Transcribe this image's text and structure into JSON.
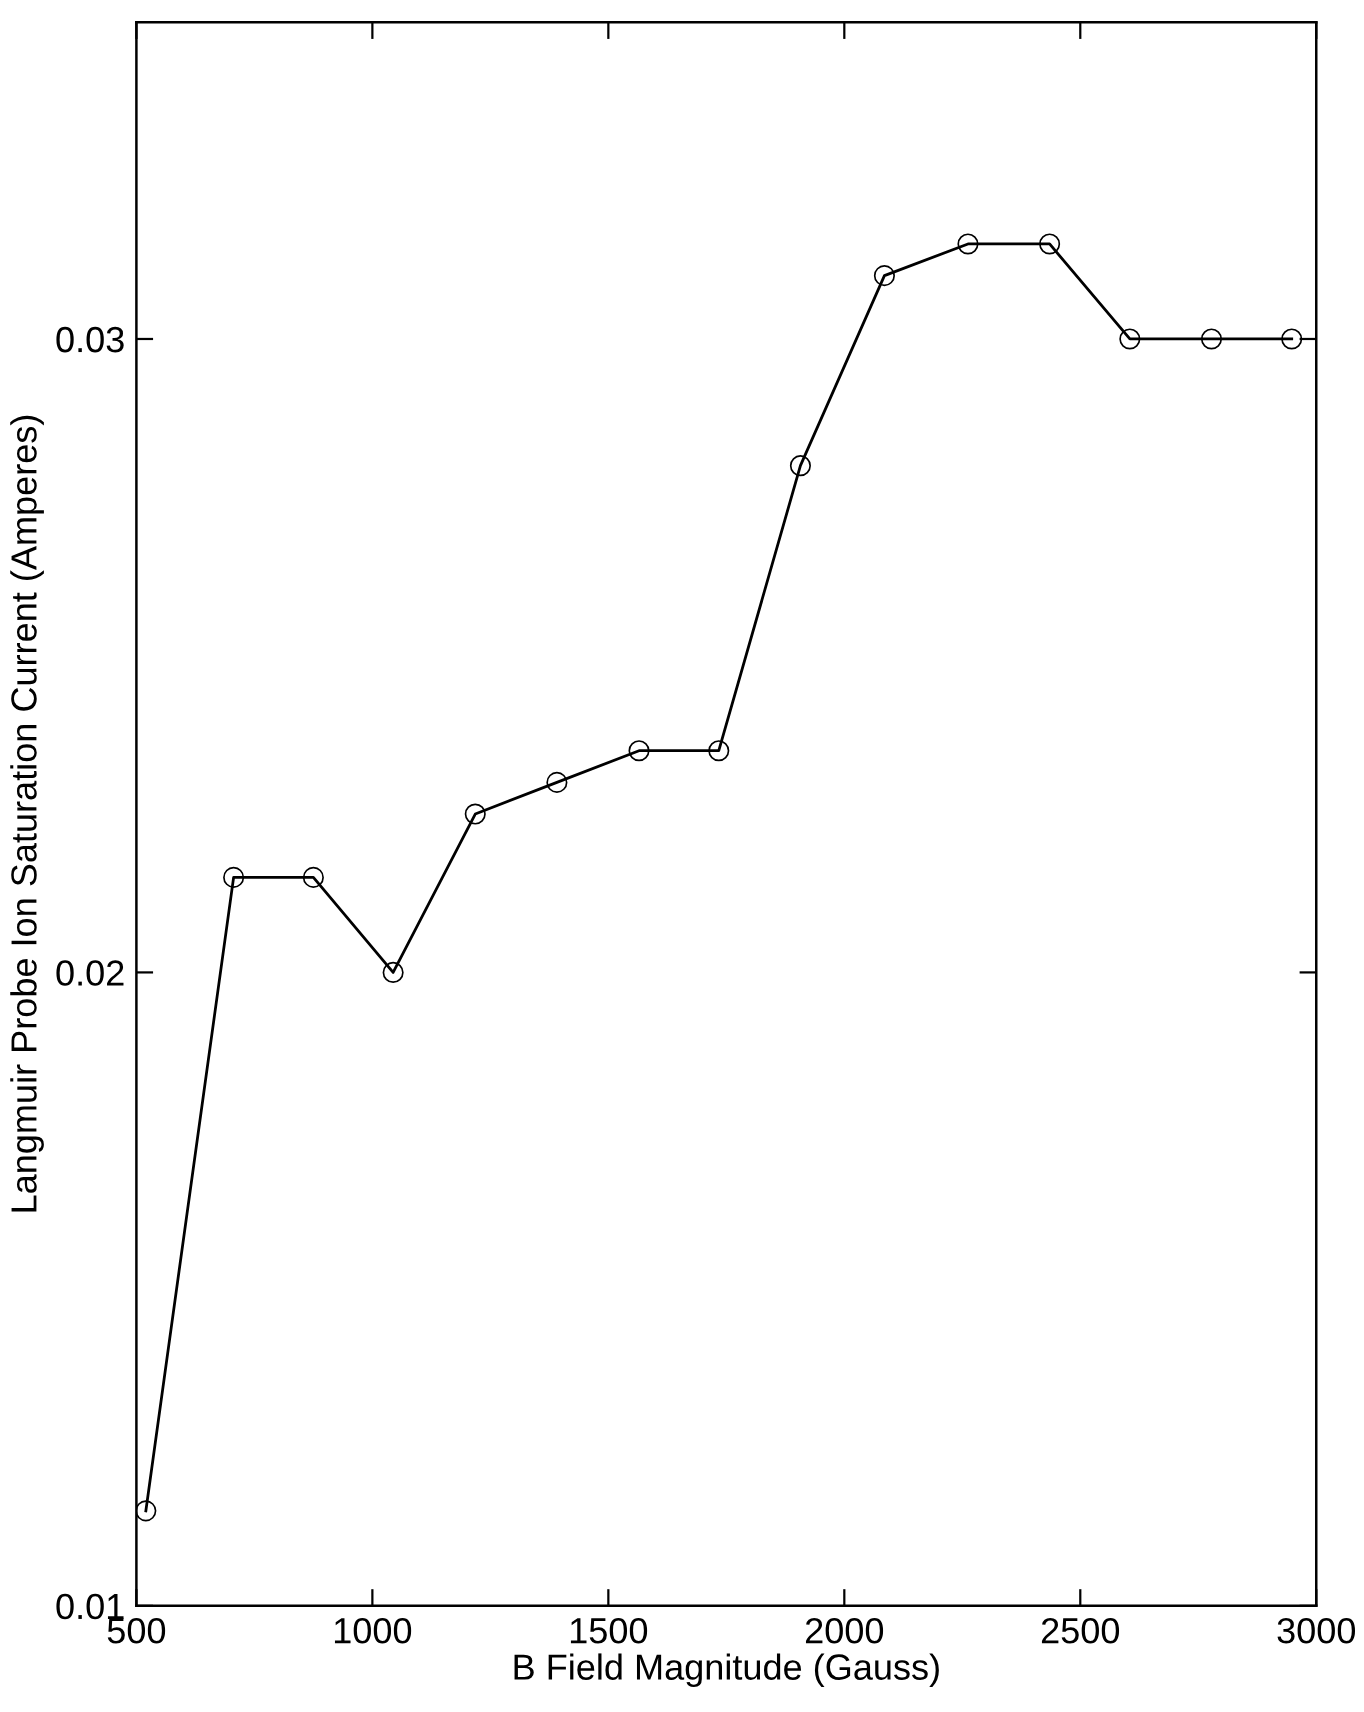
{
  "chart_data": {
    "type": "line",
    "xlabel": "B Field Magnitude (Gauss)",
    "ylabel": "Langmuir Probe Ion Saturation Current (Amperes)",
    "x": [
      520,
      706,
      875,
      1044,
      1218,
      1391,
      1565,
      1734,
      1907,
      2085,
      2262,
      2435,
      2605,
      2778,
      2948
    ],
    "series": [
      {
        "color": "#000000",
        "values": [
          0.0115,
          0.0215,
          0.0215,
          0.02,
          0.0225,
          0.023,
          0.0235,
          0.0235,
          0.028,
          0.031,
          0.0315,
          0.0315,
          0.03,
          0.03,
          0.03
        ]
      }
    ],
    "xlim": [
      500,
      3000
    ],
    "xticks": [
      500,
      1000,
      1500,
      2000,
      2500,
      3000
    ],
    "ylim": [
      0.01,
      0.035
    ],
    "yticks": [
      0.01,
      0.02,
      0.03
    ],
    "marker": "circle",
    "line_style": "solid"
  }
}
